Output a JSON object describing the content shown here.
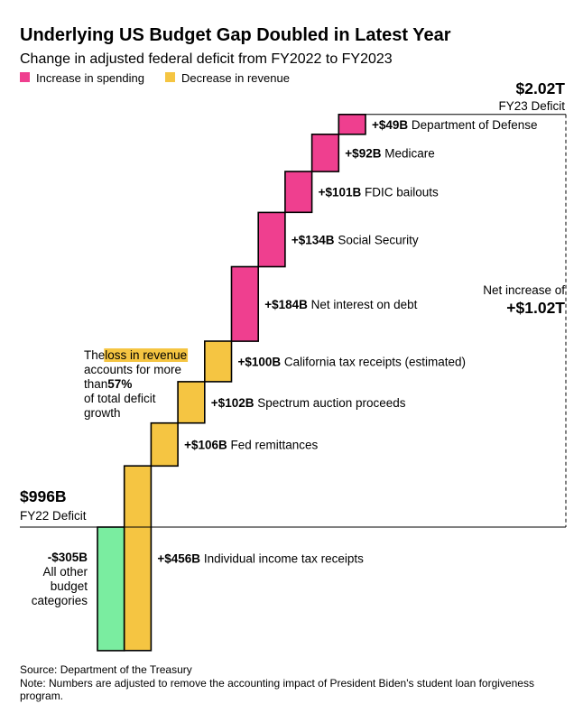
{
  "chart_data": {
    "type": "waterfall",
    "title": "Underlying US Budget Gap Doubled in Latest Year",
    "subtitle": "Change in adjusted federal deficit from FY2022 to FY2023",
    "legend": [
      {
        "name": "Increase in spending",
        "color": "#ef3f8f"
      },
      {
        "name": "Decrease in revenue",
        "color": "#f5c542"
      }
    ],
    "start": {
      "value_label": "$996B",
      "label": "FY22 Deficit",
      "value": 996
    },
    "end": {
      "value_label": "$2.02T",
      "label": "FY23 Deficit",
      "value": 2020
    },
    "net": {
      "label": "Net increase of",
      "value_label": "+$1.02T"
    },
    "steps": [
      {
        "label_value": "-$305B",
        "label": "All other budget categories",
        "value": -305,
        "kind": "other",
        "color": "#7aeda0",
        "label_lines": [
          "All other",
          "budget",
          "categories"
        ]
      },
      {
        "label_value": "+$456B",
        "label": "Individual income tax receipts",
        "value": 456,
        "kind": "revenue",
        "color": "#f5c542"
      },
      {
        "label_value": "+$106B",
        "label": "Fed remittances",
        "value": 106,
        "kind": "revenue",
        "color": "#f5c542"
      },
      {
        "label_value": "+$102B",
        "label": "Spectrum auction proceeds",
        "value": 102,
        "kind": "revenue",
        "color": "#f5c542"
      },
      {
        "label_value": "+$100B",
        "label": "California tax receipts (estimated)",
        "value": 100,
        "kind": "revenue",
        "color": "#f5c542"
      },
      {
        "label_value": "+$184B",
        "label": "Net interest on debt",
        "value": 184,
        "kind": "spending",
        "color": "#ef3f8f"
      },
      {
        "label_value": "+$134B",
        "label": "Social Security",
        "value": 134,
        "kind": "spending",
        "color": "#ef3f8f"
      },
      {
        "label_value": "+$101B",
        "label": "FDIC bailouts",
        "value": 101,
        "kind": "spending",
        "color": "#ef3f8f"
      },
      {
        "label_value": "+$92B",
        "label": "Medicare",
        "value": 92,
        "kind": "spending",
        "color": "#ef3f8f"
      },
      {
        "label_value": "+$49B",
        "label": "Department of Defense",
        "value": 49,
        "kind": "spending",
        "color": "#ef3f8f"
      }
    ],
    "annotation": {
      "lines": [
        [
          {
            "t": "The "
          },
          {
            "t": "loss in revenue",
            "hl": true
          }
        ],
        [
          {
            "t": "accounts for more"
          }
        ],
        [
          {
            "t": "than "
          },
          {
            "t": "57%",
            "b": true
          }
        ],
        [
          {
            "t": "of total deficit"
          }
        ],
        [
          {
            "t": "growth"
          }
        ]
      ],
      "highlight_color": "#f5c542"
    },
    "source": "Source: Department of the Treasury",
    "note_lines": [
      "Note: Numbers are adjusted to remove the accounting impact of President Biden's student loan forgiveness",
      "program."
    ]
  }
}
